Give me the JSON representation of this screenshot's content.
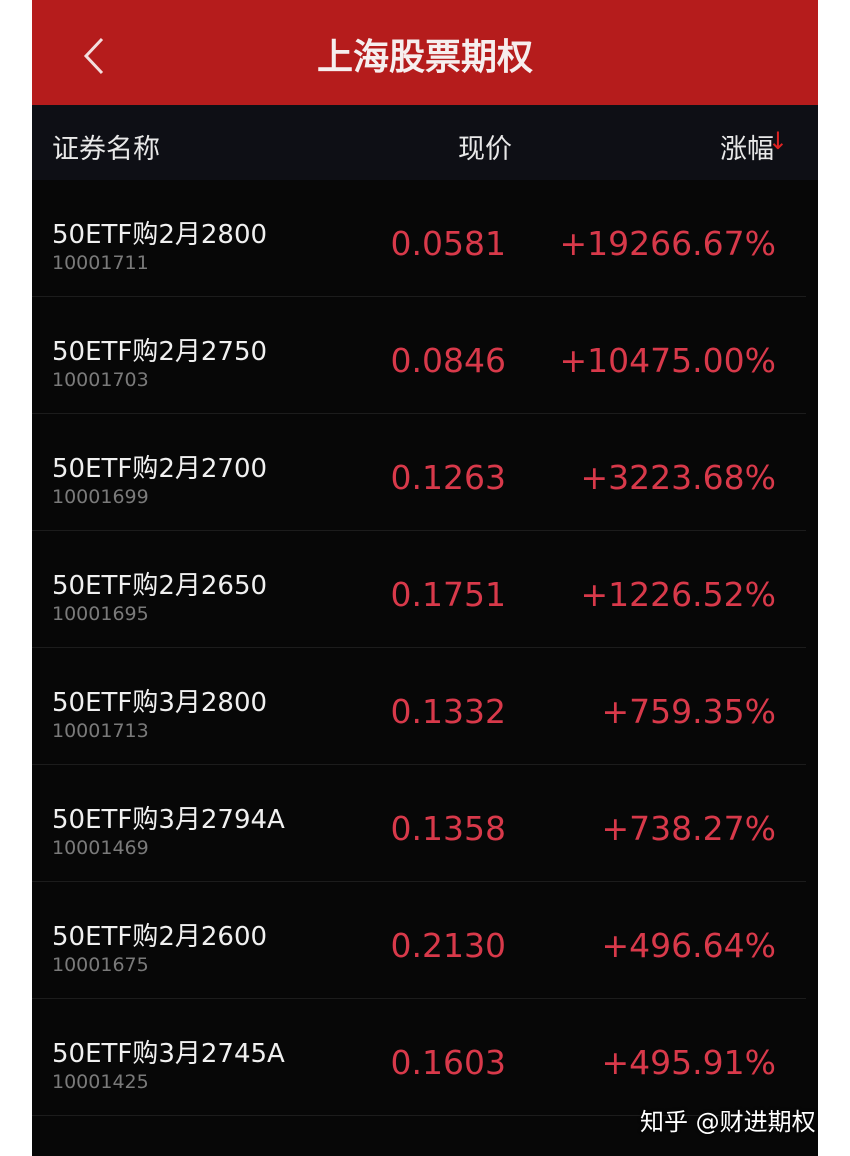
{
  "header": {
    "title": "上海股票期权",
    "back_icon": "chevron-left-icon"
  },
  "columns": {
    "name": "证券名称",
    "price": "现价",
    "change": "涨幅",
    "sort_icon": "arrow-down-icon"
  },
  "colors": {
    "header_bg": "#b51c1c",
    "up": "#d8394a"
  },
  "rows": [
    {
      "name": "50ETF购2月2800",
      "code": "10001711",
      "price": "0.0581",
      "change": "+19266.67%"
    },
    {
      "name": "50ETF购2月2750",
      "code": "10001703",
      "price": "0.0846",
      "change": "+10475.00%"
    },
    {
      "name": "50ETF购2月2700",
      "code": "10001699",
      "price": "0.1263",
      "change": "+3223.68%"
    },
    {
      "name": "50ETF购2月2650",
      "code": "10001695",
      "price": "0.1751",
      "change": "+1226.52%"
    },
    {
      "name": "50ETF购3月2800",
      "code": "10001713",
      "price": "0.1332",
      "change": "+759.35%"
    },
    {
      "name": "50ETF购3月2794A",
      "code": "10001469",
      "price": "0.1358",
      "change": "+738.27%"
    },
    {
      "name": "50ETF购2月2600",
      "code": "10001675",
      "price": "0.2130",
      "change": "+496.64%"
    },
    {
      "name": "50ETF购3月2745A",
      "code": "10001425",
      "price": "0.1603",
      "change": "+495.91%"
    }
  ],
  "watermark": "知乎 @财进期权"
}
